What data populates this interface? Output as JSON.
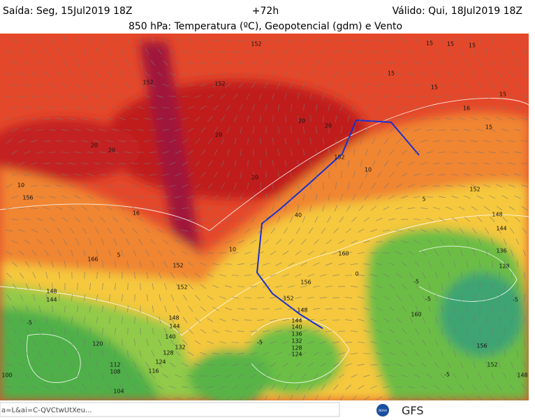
{
  "header": {
    "issued": "Saída: Seg, 15Jul2019 18Z",
    "lead": "+72h",
    "valid": "Válido: Qui, 18Jul2019 18Z",
    "title": "850 hPa: Temperatura (ºC), Geopotencial (gdm) e Vento"
  },
  "map": {
    "contour_labels": [
      "15",
      "15",
      "15",
      "15",
      "15",
      "15",
      "16",
      "15",
      "20",
      "20",
      "20",
      "20",
      "20",
      "20",
      "152",
      "152",
      "152",
      "152",
      "152",
      "148",
      "144",
      "136",
      "128",
      "160",
      "160",
      "156",
      "152",
      "148",
      "144",
      "140",
      "136",
      "132",
      "128",
      "124",
      "10",
      "10",
      "10",
      "5",
      "5",
      "-5",
      "-5",
      "-5",
      "-5",
      "-5",
      "-5",
      "0",
      "40",
      "166",
      "148",
      "144",
      "156",
      "16",
      "156",
      "152",
      "148",
      "112",
      "108",
      "104",
      "100",
      "120",
      "116",
      "132",
      "124",
      "128",
      "140",
      "144",
      "148",
      "152",
      "152"
    ]
  },
  "footer": {
    "url": "a=L&ai=C-QVCtwUtXeu...",
    "logo": "NOAA",
    "model": "GFS"
  }
}
